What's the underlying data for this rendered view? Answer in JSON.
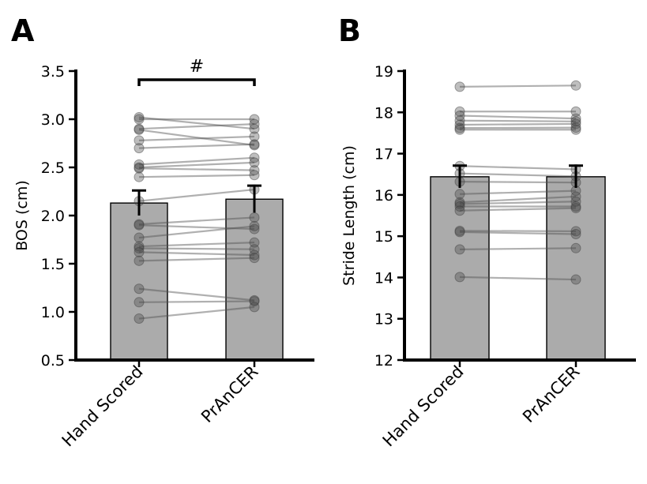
{
  "chart_data": [
    {
      "panel": "A",
      "type": "bar",
      "categories": [
        "Hand Scored",
        "PrAnCER"
      ],
      "bar_values": [
        2.13,
        2.17
      ],
      "error": [
        0.13,
        0.14
      ],
      "ylabel": "BOS (cm)",
      "xlabel": "",
      "ylim": [
        0.5,
        3.5
      ],
      "yticks": [
        "0.5",
        "1.0",
        "1.5",
        "2.0",
        "2.5",
        "3.0",
        "3.5"
      ],
      "significance": "#",
      "pairs": [
        [
          3.02,
          2.9
        ],
        [
          3.0,
          3.0
        ],
        [
          2.9,
          2.95
        ],
        [
          2.89,
          2.73
        ],
        [
          2.78,
          2.82
        ],
        [
          2.7,
          2.74
        ],
        [
          2.53,
          2.6
        ],
        [
          2.5,
          2.55
        ],
        [
          2.49,
          2.47
        ],
        [
          2.4,
          2.42
        ],
        [
          2.15,
          2.27
        ],
        [
          1.91,
          1.98
        ],
        [
          1.9,
          1.86
        ],
        [
          1.77,
          1.89
        ],
        [
          1.68,
          1.72
        ],
        [
          1.66,
          1.65
        ],
        [
          1.62,
          1.59
        ],
        [
          1.53,
          1.56
        ],
        [
          1.24,
          1.12
        ],
        [
          1.1,
          1.11
        ],
        [
          0.93,
          1.05
        ]
      ]
    },
    {
      "panel": "B",
      "type": "bar",
      "categories": [
        "Hand Scored",
        "PrAnCER"
      ],
      "bar_values": [
        16.44,
        16.44
      ],
      "error": [
        0.27,
        0.27
      ],
      "ylabel": "Stride Length (cm)",
      "xlabel": "",
      "ylim": [
        12,
        19
      ],
      "yticks": [
        "12",
        "13",
        "14",
        "15",
        "16",
        "17",
        "18",
        "19"
      ],
      "pairs": [
        [
          18.62,
          18.65
        ],
        [
          18.02,
          18.02
        ],
        [
          17.92,
          17.85
        ],
        [
          17.8,
          17.78
        ],
        [
          17.7,
          17.72
        ],
        [
          17.62,
          17.63
        ],
        [
          17.58,
          17.58
        ],
        [
          16.7,
          16.62
        ],
        [
          16.52,
          16.45
        ],
        [
          16.32,
          16.3
        ],
        [
          16.02,
          16.1
        ],
        [
          15.82,
          15.96
        ],
        [
          15.78,
          15.84
        ],
        [
          15.72,
          15.72
        ],
        [
          15.62,
          15.68
        ],
        [
          15.13,
          15.12
        ],
        [
          15.1,
          15.05
        ],
        [
          14.68,
          14.71
        ],
        [
          14.01,
          13.95
        ]
      ]
    }
  ]
}
